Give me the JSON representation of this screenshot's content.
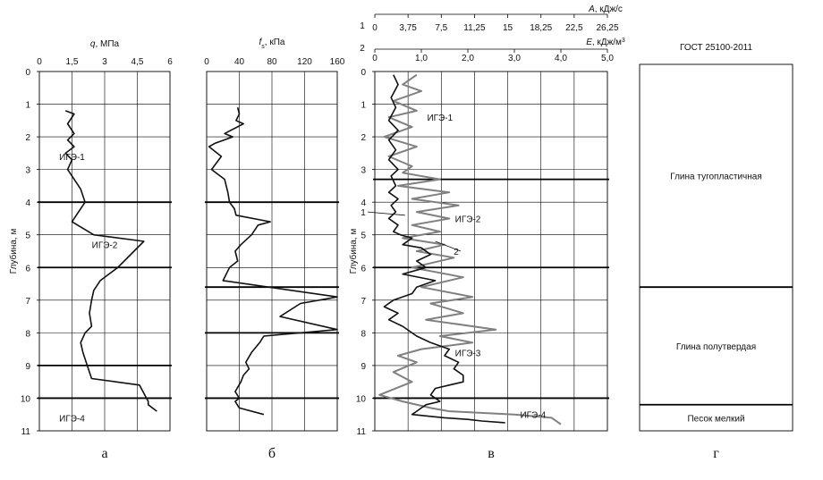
{
  "colors": {
    "line": "#111111",
    "series2": "#808080",
    "grid": "#000000"
  },
  "chart_data": [
    {
      "panel": "a",
      "type": "line",
      "xlabel_pre": "q",
      "xlabel_post": ", МПа",
      "ylabel": "Глубина, м",
      "xlim": [
        0,
        6
      ],
      "ylim": [
        0,
        11
      ],
      "xticks": [
        0,
        1.5,
        3,
        4.5,
        6
      ],
      "xticklabels": [
        "0",
        "1,5",
        "3",
        "4,5",
        "6"
      ],
      "yticks": [
        0,
        1,
        2,
        3,
        4,
        5,
        6,
        7,
        8,
        9,
        10,
        11
      ],
      "yticklabels": [
        "0",
        "1",
        "2",
        "3",
        "4",
        "5",
        "6",
        "7",
        "8",
        "9",
        "10",
        "11"
      ],
      "boundaries": [
        4,
        6,
        9,
        10
      ],
      "labels": [
        {
          "text": "ИГЭ-1",
          "x": 1.5,
          "y": 2.6
        },
        {
          "text": "ИГЭ-2",
          "x": 3.0,
          "y": 5.3
        },
        {
          "text": "ИГЭ-4",
          "x": 1.5,
          "y": 10.6
        }
      ],
      "caption": "а",
      "series": [
        {
          "x": [
            1.2,
            1.6,
            1.3,
            1.6,
            1.3,
            1.6,
            1.2,
            1.5,
            1.3,
            1.6,
            1.9,
            2.1,
            1.8,
            1.5,
            2.5,
            4.8,
            3.6,
            2.8,
            2.5,
            2.4,
            2.3,
            2.4,
            2.1,
            1.9,
            2.0,
            2.2,
            2.4,
            4.6,
            5.0,
            5.0,
            5.4
          ],
          "y": [
            1.2,
            1.3,
            1.6,
            1.9,
            2.1,
            2.3,
            2.5,
            2.7,
            3.0,
            3.3,
            3.6,
            4.0,
            4.3,
            4.6,
            5.0,
            5.2,
            6.0,
            6.4,
            6.7,
            7.0,
            7.4,
            7.8,
            8.0,
            8.3,
            8.6,
            9.0,
            9.4,
            9.6,
            10.1,
            10.2,
            10.4
          ]
        }
      ]
    },
    {
      "panel": "b",
      "type": "line",
      "xlabel_pre": "f",
      "xlabel_sub": "s",
      "xlabel_post": ", кПа",
      "xlim": [
        0,
        160
      ],
      "ylim": [
        0,
        11
      ],
      "xticks": [
        0,
        40,
        80,
        120,
        160
      ],
      "xticklabels": [
        "0",
        "40",
        "80",
        "120",
        "160"
      ],
      "yticks": [
        0,
        1,
        2,
        3,
        4,
        5,
        6,
        7,
        8,
        9,
        10,
        11
      ],
      "boundaries": [
        4,
        6.6,
        8,
        10
      ],
      "caption": "б",
      "series": [
        {
          "x": [
            38,
            40,
            36,
            45,
            22,
            32,
            10,
            3,
            18,
            6,
            22,
            26,
            28,
            34,
            36,
            78,
            63,
            55,
            42,
            35,
            38,
            28,
            20,
            160,
            115,
            90,
            160,
            70,
            65,
            55,
            48,
            52,
            45,
            42,
            35,
            40,
            35,
            40,
            70
          ],
          "y": [
            1.1,
            1.3,
            1.5,
            1.6,
            1.9,
            2.0,
            2.2,
            2.3,
            2.6,
            3.0,
            3.3,
            3.7,
            4.0,
            4.2,
            4.4,
            4.6,
            4.7,
            5.0,
            5.3,
            5.5,
            5.8,
            6.0,
            6.4,
            6.9,
            7.1,
            7.5,
            7.9,
            8.1,
            8.3,
            8.6,
            8.9,
            9.1,
            9.3,
            9.5,
            9.8,
            10.0,
            10.1,
            10.3,
            10.5
          ]
        }
      ]
    },
    {
      "panel": "v",
      "type": "line",
      "axis1_index": "1",
      "axis2_index": "2",
      "xlabel1_pre": "A",
      "xlabel1_post": ", кДж/с",
      "xlabel2_pre": "E",
      "xlabel2_post": ", кДж/м",
      "xlabel2_sup": "3",
      "ylabel": "Глубина, м",
      "xlim": [
        0,
        5
      ],
      "ylim": [
        0,
        11
      ],
      "xticks1": [
        "0",
        "3,75",
        "7,5",
        "11,25",
        "15",
        "18,25",
        "22,5",
        "26,25"
      ],
      "xticks2": [
        "0",
        "1,0",
        "2,0",
        "3,0",
        "4,0",
        "5,0"
      ],
      "yticklabels": [
        "0",
        "1",
        "2",
        "3",
        "4",
        "5",
        "6",
        "7",
        "8",
        "9",
        "10",
        "11"
      ],
      "boundaries": [
        3.3,
        6.0,
        10.0
      ],
      "labels": [
        {
          "text": "ИГЭ-1",
          "x": 1.4,
          "y": 1.4
        },
        {
          "text": "ИГЭ-2",
          "x": 2.0,
          "y": 4.5
        },
        {
          "text": "ИГЭ-3",
          "x": 2.0,
          "y": 8.6
        },
        {
          "text": "ИГЭ-4",
          "x": 3.4,
          "y": 10.5
        }
      ],
      "callouts": [
        {
          "text": "1",
          "tx": -0.25,
          "ty": 4.3,
          "px": 0.65,
          "py": 4.4
        },
        {
          "text": "2",
          "tx": 1.75,
          "ty": 5.5,
          "px": 1.3,
          "py": 5.2
        }
      ],
      "caption": "в",
      "series": [
        {
          "name": "1",
          "x": [
            0.4,
            0.5,
            0.35,
            0.45,
            0.3,
            0.5,
            0.3,
            0.45,
            0.3,
            0.5,
            0.35,
            0.45,
            0.3,
            0.5,
            0.35,
            0.45,
            0.3,
            0.5,
            0.4,
            0.55,
            0.8,
            0.6,
            1.0,
            1.2,
            0.9,
            1.1,
            0.6,
            1.3,
            0.9,
            0.8,
            0.4,
            0.2,
            0.5,
            0.3,
            0.6,
            0.8,
            0.9,
            1.2,
            1.6,
            1.5,
            1.8,
            1.7,
            1.9,
            1.9,
            1.3,
            1.2,
            1.4,
            1.1,
            1.0,
            0.9,
            0.8,
            1.5,
            2.0,
            2.3,
            2.8
          ],
          "y": [
            0.1,
            0.4,
            0.8,
            1.1,
            1.5,
            1.8,
            2.1,
            2.4,
            2.7,
            3.0,
            3.2,
            3.5,
            3.7,
            3.9,
            4.1,
            4.3,
            4.5,
            4.7,
            4.9,
            5.0,
            5.1,
            5.3,
            5.4,
            5.6,
            5.8,
            6.0,
            6.2,
            6.4,
            6.6,
            6.8,
            7.0,
            7.2,
            7.4,
            7.6,
            7.8,
            8.0,
            8.1,
            8.3,
            8.5,
            8.7,
            8.9,
            9.1,
            9.3,
            9.5,
            9.7,
            9.9,
            10.1,
            10.2,
            10.3,
            10.4,
            10.5,
            10.6,
            10.65,
            10.7,
            10.75
          ]
        },
        {
          "name": "2",
          "x": [
            0.9,
            0.6,
            1.0,
            0.4,
            0.9,
            0.3,
            0.8,
            0.2,
            0.9,
            0.3,
            0.8,
            0.6,
            1.4,
            0.5,
            1.6,
            0.8,
            1.8,
            0.9,
            1.6,
            0.8,
            1.4,
            0.6,
            1.5,
            0.9,
            1.7,
            0.8,
            1.9,
            1.0,
            2.1,
            1.2,
            1.9,
            1.1,
            2.6,
            1.4,
            2.1,
            1.0,
            0.5,
            0.9,
            0.4,
            0.8,
            0.1,
            0.6,
            1.2,
            1.6,
            3.0,
            3.8,
            4.0
          ],
          "y": [
            0.1,
            0.4,
            0.6,
            0.9,
            1.2,
            1.4,
            1.7,
            2.0,
            2.3,
            2.6,
            2.9,
            3.1,
            3.3,
            3.5,
            3.7,
            3.9,
            4.1,
            4.3,
            4.5,
            4.7,
            4.9,
            5.1,
            5.3,
            5.5,
            5.7,
            6.0,
            6.3,
            6.6,
            6.9,
            7.1,
            7.4,
            7.6,
            7.9,
            8.1,
            8.3,
            8.5,
            8.7,
            8.9,
            9.2,
            9.5,
            9.9,
            10.1,
            10.3,
            10.4,
            10.5,
            10.6,
            10.8
          ]
        }
      ]
    },
    {
      "panel": "g",
      "type": "table",
      "title": "ГОСТ 25100-2011",
      "layers": [
        {
          "name": "Глина тугопластичная",
          "top": 0,
          "bottom": 6.6
        },
        {
          "name": "Глина полутвердая",
          "top": 6.6,
          "bottom": 10.2
        },
        {
          "name": "Песок мелкий",
          "top": 10.2,
          "bottom": 11
        }
      ],
      "caption": "г"
    }
  ]
}
